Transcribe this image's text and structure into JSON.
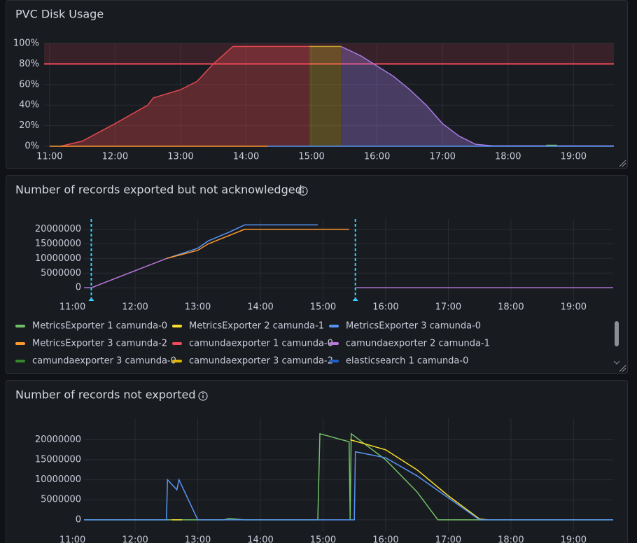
{
  "chart_data": [
    {
      "type": "line",
      "title": "PVC Disk Usage",
      "xlim": [
        "10:55",
        "19:37"
      ],
      "xticks": [
        "11:00",
        "12:00",
        "13:00",
        "14:00",
        "15:00",
        "16:00",
        "17:00",
        "18:00",
        "19:00"
      ],
      "ylim": [
        0,
        100
      ],
      "yticks": [
        {
          "value": 0,
          "label": "0%"
        },
        {
          "value": 20,
          "label": "20%"
        },
        {
          "value": 40,
          "label": "40%"
        },
        {
          "value": 60,
          "label": "60%"
        },
        {
          "value": 80,
          "label": "80%"
        },
        {
          "value": 100,
          "label": "100%"
        }
      ],
      "grid": true,
      "threshold": {
        "value": 80,
        "color": "#f2495c"
      },
      "series": [
        {
          "color": "#e0484e",
          "fill": true,
          "x": [
            "11:10",
            "11:30",
            "12:00",
            "12:30",
            "12:35",
            "13:00",
            "13:15",
            "13:30",
            "13:48",
            "14:58"
          ],
          "values": [
            0,
            5,
            22,
            40,
            47,
            55,
            63,
            80,
            97,
            97
          ]
        },
        {
          "color": "#c8a32b",
          "fill": true,
          "x": [
            "14:58",
            "15:27"
          ],
          "values": [
            97,
            97
          ]
        },
        {
          "color": "#a47ae0",
          "fill": true,
          "x": [
            "15:27",
            "15:45",
            "16:00",
            "16:15",
            "16:30",
            "16:45",
            "17:00",
            "17:15",
            "17:30",
            "17:45",
            "19:37"
          ],
          "values": [
            97,
            88,
            78,
            68,
            55,
            40,
            22,
            10,
            2,
            0.5,
            0.3
          ]
        },
        {
          "color": "#ff9830",
          "x": [
            "11:00",
            "14:20"
          ],
          "values": [
            0,
            0
          ]
        },
        {
          "color": "#5794f2",
          "x": [
            "14:20",
            "19:37"
          ],
          "values": [
            0,
            0
          ]
        },
        {
          "color": "#73bf69",
          "x": [
            "18:35",
            "18:45"
          ],
          "values": [
            1,
            1
          ]
        }
      ]
    },
    {
      "type": "line",
      "title": "Number of records exported but not acknowledged",
      "xlim": [
        "11:11",
        "19:38"
      ],
      "xticks": [
        "11:00",
        "12:00",
        "13:00",
        "14:00",
        "15:00",
        "16:00",
        "17:00",
        "18:00",
        "19:00"
      ],
      "ylim": [
        -4500000,
        23500000
      ],
      "yticks": [
        0,
        5000000,
        10000000,
        15000000,
        20000000
      ],
      "grid": true,
      "annotations": [
        "11:18",
        "15:31"
      ],
      "annotation_color": "#33d1ff",
      "series": [
        {
          "name": "MetricsExporter 1 camunda-0",
          "color": "#73bf69",
          "x": [],
          "values": []
        },
        {
          "name": "MetricsExporter 2 camunda-1",
          "color": "#fade2a",
          "x": [],
          "values": []
        },
        {
          "name": "MetricsExporter 3 camunda-0",
          "color": "#5794f2",
          "x": [
            "12:30",
            "13:00",
            "13:10",
            "13:30",
            "13:45",
            "14:55"
          ],
          "values": [
            10000000,
            13500000,
            16000000,
            19000000,
            21500000,
            21500000
          ]
        },
        {
          "name": "MetricsExporter 3 camunda-2",
          "color": "#ff9830",
          "x": [
            "12:30",
            "13:00",
            "13:10",
            "13:45",
            "15:25"
          ],
          "values": [
            10000000,
            12800000,
            15000000,
            20000000,
            20000000
          ]
        },
        {
          "name": "camundaexporter 1 camunda-0",
          "color": "#f2495c",
          "x": [
            "17:35",
            "17:50"
          ],
          "values": [
            0,
            0
          ]
        },
        {
          "name": "camundaexporter 2 camunda-1",
          "color": "#b877d9",
          "x": [
            "11:11",
            "11:18",
            "12:30",
            "15:00",
            "15:31",
            "19:38"
          ],
          "values": [
            0,
            0,
            10000000,
            null,
            0,
            0
          ]
        },
        {
          "name": "camundaexporter 3 camunda-0",
          "color": "#37872d",
          "x": [],
          "values": []
        },
        {
          "name": "camundaexporter 3 camunda-2",
          "color": "#e0b400",
          "x": [],
          "values": []
        },
        {
          "name": "elasticsearch 1 camunda-0",
          "color": "#1f60c4",
          "x": [],
          "values": []
        }
      ]
    },
    {
      "type": "line",
      "title": "Number of records not exported",
      "xlim": [
        "11:11",
        "19:38"
      ],
      "xticks": [
        "11:00",
        "12:00",
        "13:00",
        "14:00",
        "15:00",
        "16:00",
        "17:00",
        "18:00",
        "19:00"
      ],
      "ylim": [
        -3000000,
        25500000
      ],
      "yticks": [
        0,
        5000000,
        10000000,
        15000000,
        20000000
      ],
      "grid": true,
      "series": [
        {
          "color": "#73bf69",
          "x": [
            "11:11",
            "13:25",
            "13:30",
            "13:45",
            "14:55",
            "14:57",
            "15:25",
            "15:26",
            "15:27",
            "16:00",
            "16:30",
            "16:50",
            "19:38"
          ],
          "values": [
            0,
            0,
            300000,
            0,
            0,
            21500000,
            19500000,
            0,
            21500000,
            15000000,
            7000000,
            0,
            0
          ]
        },
        {
          "color": "#fade2a",
          "x": [
            "12:35",
            "12:45",
            "15:25",
            "15:26",
            "16:00",
            "16:30",
            "17:00",
            "17:30",
            "17:38"
          ],
          "values": [
            0,
            0,
            null,
            20000000,
            17500000,
            12500000,
            6000000,
            200000,
            0
          ]
        },
        {
          "color": "#5794f2",
          "x": [
            "11:11",
            "12:30",
            "12:31",
            "12:40",
            "12:42",
            "13:00",
            "15:30",
            "15:31",
            "16:00",
            "16:30",
            "17:00",
            "17:30",
            "19:38"
          ],
          "values": [
            0,
            0,
            10000000,
            7500000,
            10000000,
            0,
            0,
            17000000,
            15500000,
            11000000,
            5500000,
            0,
            0
          ]
        }
      ]
    }
  ]
}
